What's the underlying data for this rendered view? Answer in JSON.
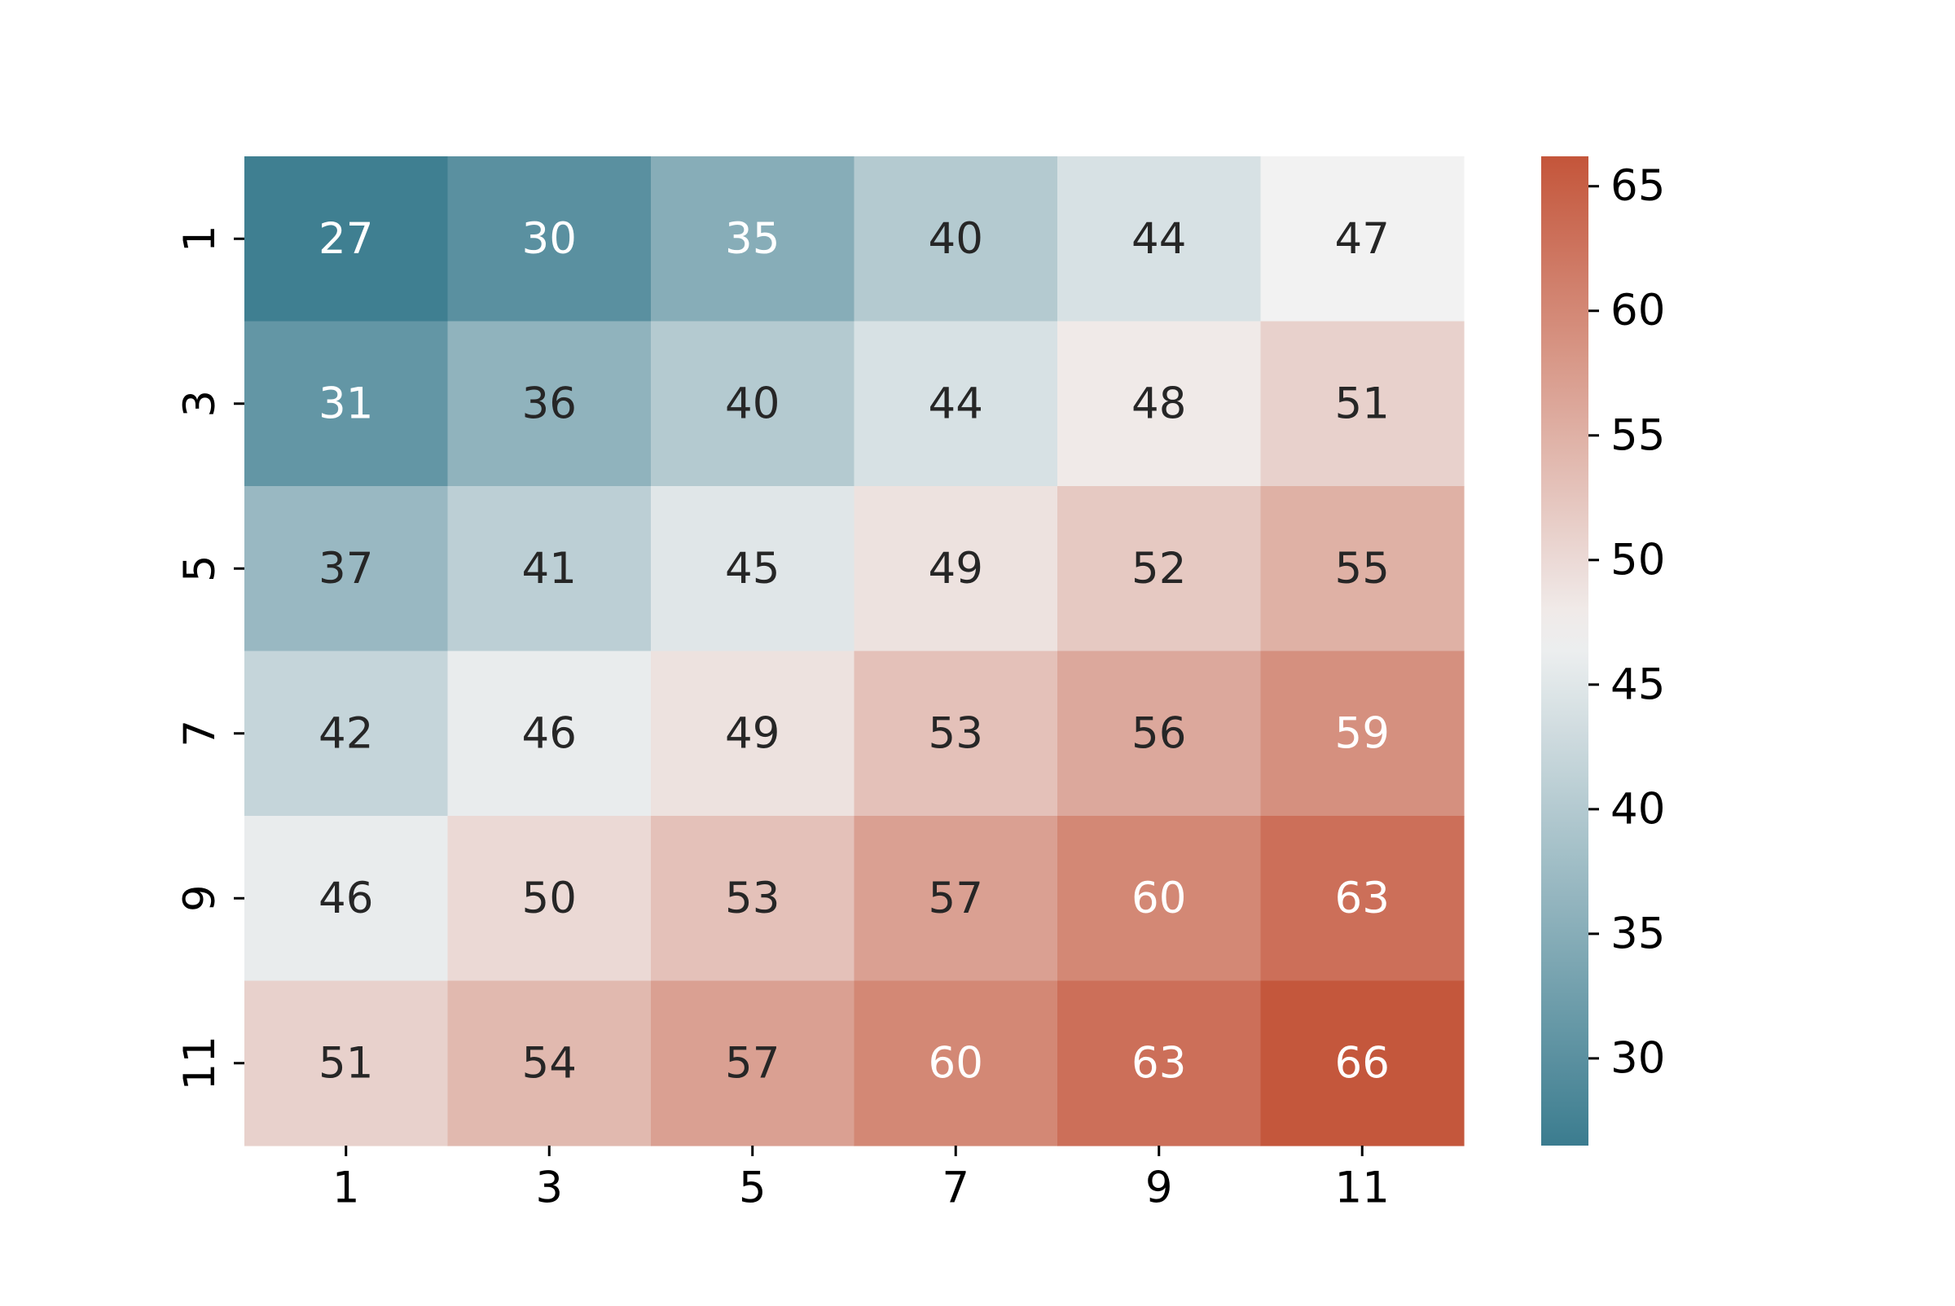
{
  "chart_data": {
    "type": "heatmap",
    "title": "",
    "xlabel": "",
    "ylabel": "",
    "x_categories": [
      "1",
      "3",
      "5",
      "7",
      "9",
      "11"
    ],
    "y_categories": [
      "1",
      "3",
      "5",
      "7",
      "9",
      "11"
    ],
    "values": [
      [
        27,
        30,
        35,
        40,
        44,
        47
      ],
      [
        31,
        36,
        40,
        44,
        48,
        51
      ],
      [
        37,
        41,
        45,
        49,
        52,
        55
      ],
      [
        42,
        46,
        49,
        53,
        56,
        59
      ],
      [
        46,
        50,
        53,
        57,
        60,
        63
      ],
      [
        51,
        54,
        57,
        60,
        63,
        66
      ]
    ],
    "annotated": true,
    "colorbar": {
      "range": [
        26.5,
        66.2
      ],
      "ticks": [
        30,
        35,
        40,
        45,
        50,
        55,
        60,
        65
      ],
      "placement": "right"
    },
    "colormap": {
      "name": "diverging teal-to-red",
      "low_color": "#3b7c8f",
      "mid_color": "#f2f2f2",
      "high_color": "#c4553a",
      "center_value": 47
    },
    "text_colors": {
      "light": "#ffffff",
      "dark": "#262626"
    },
    "grid": false,
    "legend": "colorbar-right"
  }
}
